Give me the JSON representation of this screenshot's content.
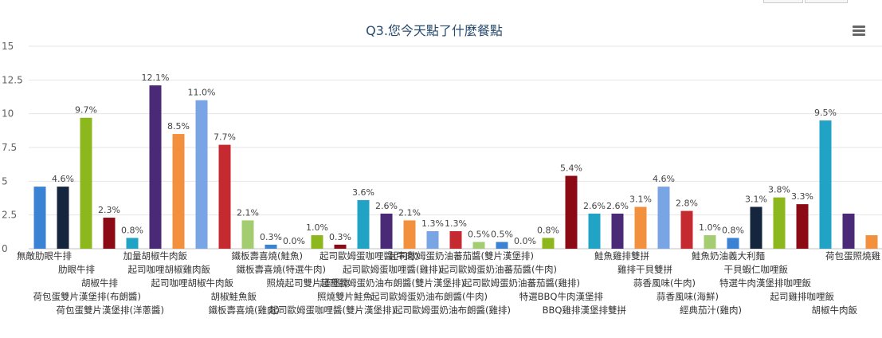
{
  "chart_data": {
    "type": "bar",
    "title": "Q3.您今天點了什麼餐點",
    "xlabel": "",
    "ylabel": "",
    "ylim": [
      0,
      15
    ],
    "yticks": [
      0,
      2.5,
      5,
      7.5,
      10,
      12.5,
      15
    ],
    "ytick_labels": [
      "0",
      "2.5",
      "5",
      "7.5",
      "10",
      "12.5",
      "15"
    ],
    "grid": true,
    "legend": "none",
    "categories": [
      "無敵肋眼牛排",
      "肋眼牛排",
      "胡椒牛排",
      "荷包蛋雙片漢堡排(布朗醬)",
      "荷包蛋雙片漢堡排(洋蔥醬)",
      "加量胡椒牛肉飯",
      "起司咖哩胡椒雞肉飯",
      "起司咖哩胡椒牛肉飯",
      "胡椒鮭魚飯",
      "鐵板壽喜燒(雞肉)",
      "鐵板壽喜燒(鮭魚)",
      "鐵板壽喜燒(特選牛肉)",
      "照燒起司雙片漢堡排",
      "照燒雙片鮭魚",
      "起司歐姆蛋咖哩醬(雙片漢堡排)",
      "起司歐姆蛋咖哩醬(牛肉)",
      "起司歐姆蛋咖哩醬(雞排)",
      "起司歐姆蛋奶油布朗醬(雙片漢堡排)",
      "起司歐姆蛋奶油布朗醬(牛肉)",
      "起司歐姆蛋奶油布朗醬(雞排)",
      "起司歐姆蛋奶油蕃茄醬(雙片漢堡排)",
      "起司歐姆蛋奶油蕃茄醬(牛肉)",
      "起司歐姆蛋奶油蕃茄醬(雞排)",
      "特選BBQ牛肉漢堡排",
      "BBQ雞排漢堡排雙拼",
      "鮭魚雞排雙拼",
      "雞排干貝雙拼",
      "蒜香風味(牛肉)",
      "蒜香風味(海鮮)",
      "經典茄汁(雞肉)",
      "鮭魚奶油義大利麵",
      "干貝蝦仁咖哩飯",
      "特選牛肉漢堡排咖哩飯",
      "起司雞排咖哩飯",
      "胡椒牛肉飯",
      "荷包蛋照燒雞",
      ""
    ],
    "values": [
      4.6,
      4.6,
      9.7,
      2.3,
      0.8,
      12.1,
      8.5,
      11.0,
      7.7,
      2.1,
      0.3,
      0.0,
      1.0,
      0.3,
      3.6,
      2.6,
      2.1,
      1.3,
      1.3,
      0.5,
      0.5,
      0.0,
      0.8,
      5.4,
      2.6,
      2.6,
      3.1,
      4.6,
      2.8,
      1.0,
      0.8,
      3.1,
      3.8,
      3.3,
      9.5,
      2.6,
      1.0
    ],
    "data_labels": [
      "",
      "4.6%",
      "9.7%",
      "2.3%",
      "0.8%",
      "12.1%",
      "8.5%",
      "11.0%",
      "7.7%",
      "2.1%",
      "0.3%",
      "0.0%",
      "1.0%",
      "0.3%",
      "3.6%",
      "2.6%",
      "2.1%",
      "1.3%",
      "1.3%",
      "0.5%",
      "0.5%",
      "0.0%",
      "0.8%",
      "5.4%",
      "2.6%",
      "2.6%",
      "3.1%",
      "4.6%",
      "2.8%",
      "1.0%",
      "0.8%",
      "3.1%",
      "3.8%",
      "3.3%",
      "9.5%",
      "",
      ""
    ],
    "colors": [
      "#3a83d4",
      "#14253d",
      "#8cb81e",
      "#8b0a14",
      "#21a3c6",
      "#4a2a77",
      "#f2903e",
      "#7aa5e4",
      "#c42a30",
      "#a4cc70",
      "#3a83d4",
      "#14253d",
      "#8cb81e",
      "#8b0a14",
      "#21a3c6",
      "#4a2a77",
      "#f2903e",
      "#7aa5e4",
      "#c42a30",
      "#a4cc70",
      "#3a83d4",
      "#14253d",
      "#8cb81e",
      "#8b0a14",
      "#21a3c6",
      "#4a2a77",
      "#f2903e",
      "#7aa5e4",
      "#c42a30",
      "#a4cc70",
      "#3a83d4",
      "#14253d",
      "#8cb81e",
      "#8b0a14",
      "#21a3c6",
      "#4a2a77",
      "#f2903e"
    ]
  },
  "ui": {
    "menu_icon": "hamburger-icon"
  }
}
